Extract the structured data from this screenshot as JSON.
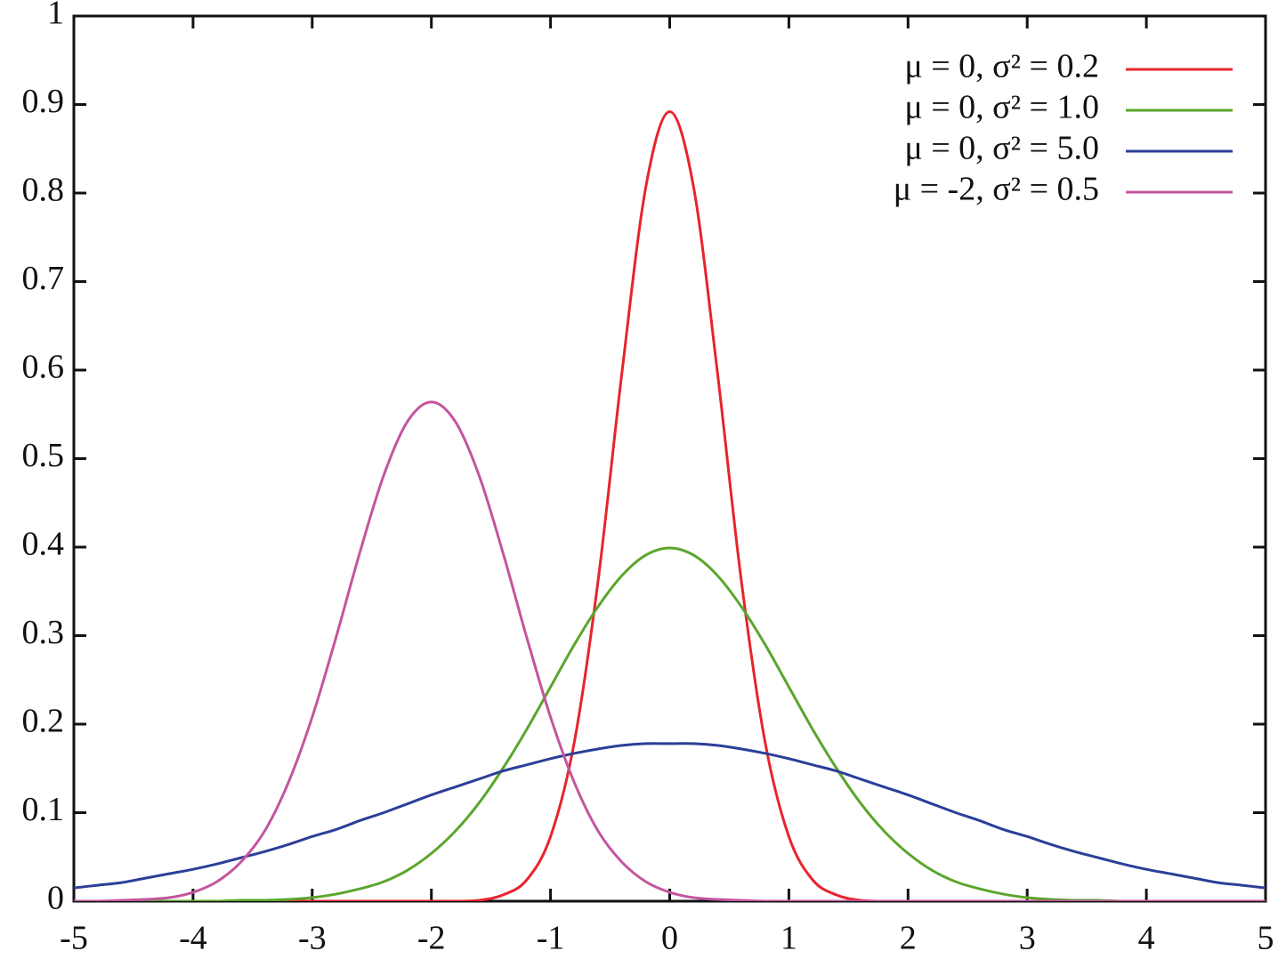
{
  "chart_data": {
    "type": "line",
    "x": [
      -5,
      -4.8,
      -4.6,
      -4.4,
      -4.2,
      -4,
      -3.8,
      -3.6,
      -3.4,
      -3.2,
      -3,
      -2.8,
      -2.6,
      -2.4,
      -2.2,
      -2,
      -1.8,
      -1.6,
      -1.4,
      -1.2,
      -1,
      -0.8,
      -0.6,
      -0.4,
      -0.2,
      0,
      0.2,
      0.4,
      0.6,
      0.8,
      1,
      1.2,
      1.4,
      1.6,
      1.8,
      2,
      2.2,
      2.4,
      2.6,
      2.8,
      3,
      3.2,
      3.4,
      3.6,
      3.8,
      4,
      4.2,
      4.4,
      4.6,
      4.8,
      5
    ],
    "series": [
      {
        "name": "μ = 0, σ² = 0.2",
        "color": "#e8242c",
        "values": [
          0,
          0,
          0,
          0,
          0,
          0,
          0,
          0,
          0,
          0,
          0,
          0,
          0,
          0,
          0,
          0,
          0,
          0.001,
          0.007,
          0.024,
          0.073,
          0.18,
          0.363,
          0.598,
          0.807,
          0.892,
          0.807,
          0.598,
          0.363,
          0.18,
          0.073,
          0.024,
          0.007,
          0.001,
          0,
          0,
          0,
          0,
          0,
          0,
          0,
          0,
          0,
          0,
          0,
          0,
          0,
          0,
          0,
          0,
          0
        ]
      },
      {
        "name": "μ = 0, σ² = 1.0",
        "color": "#5aa62c",
        "values": [
          0,
          0,
          0,
          0,
          0,
          0,
          0,
          0.001,
          0.001,
          0.002,
          0.004,
          0.008,
          0.014,
          0.022,
          0.035,
          0.054,
          0.079,
          0.111,
          0.15,
          0.194,
          0.242,
          0.29,
          0.333,
          0.368,
          0.391,
          0.399,
          0.391,
          0.368,
          0.333,
          0.29,
          0.242,
          0.194,
          0.15,
          0.111,
          0.079,
          0.054,
          0.035,
          0.022,
          0.014,
          0.008,
          0.004,
          0.002,
          0.001,
          0.001,
          0,
          0,
          0,
          0,
          0,
          0,
          0
        ]
      },
      {
        "name": "μ = 0, σ² = 5.0",
        "color": "#2b3f98",
        "values": [
          0.015,
          0.018,
          0.021,
          0.026,
          0.031,
          0.036,
          0.042,
          0.049,
          0.056,
          0.064,
          0.073,
          0.081,
          0.091,
          0.1,
          0.11,
          0.12,
          0.129,
          0.138,
          0.147,
          0.154,
          0.161,
          0.167,
          0.172,
          0.176,
          0.178,
          0.178,
          0.178,
          0.176,
          0.172,
          0.167,
          0.161,
          0.154,
          0.147,
          0.138,
          0.129,
          0.12,
          0.11,
          0.1,
          0.091,
          0.081,
          0.073,
          0.064,
          0.056,
          0.049,
          0.042,
          0.036,
          0.031,
          0.026,
          0.021,
          0.018,
          0.015
        ]
      },
      {
        "name": "μ = -2, σ² = 0.5",
        "color": "#c4559e",
        "values": [
          0,
          0,
          0.001,
          0.002,
          0.004,
          0.01,
          0.022,
          0.044,
          0.079,
          0.134,
          0.208,
          0.298,
          0.394,
          0.481,
          0.542,
          0.564,
          0.542,
          0.481,
          0.394,
          0.298,
          0.208,
          0.134,
          0.079,
          0.044,
          0.022,
          0.01,
          0.004,
          0.002,
          0.001,
          0,
          0,
          0,
          0,
          0,
          0,
          0,
          0,
          0,
          0,
          0,
          0,
          0,
          0,
          0,
          0,
          0,
          0,
          0,
          0,
          0,
          0
        ]
      }
    ],
    "xlim": [
      -5,
      5
    ],
    "xticks": [
      -5,
      -4,
      -3,
      -2,
      -1,
      0,
      1,
      2,
      3,
      4,
      5
    ],
    "ylim": [
      0,
      1
    ],
    "yticks": [
      0,
      0.1,
      0.2,
      0.3,
      0.4,
      0.5,
      0.6,
      0.7,
      0.8,
      0.9,
      1
    ],
    "legend": "top-right",
    "grid": false
  }
}
